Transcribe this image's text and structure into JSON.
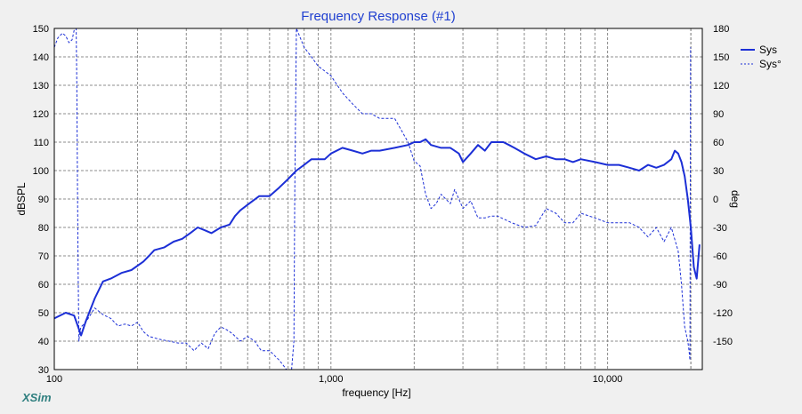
{
  "app": {
    "brand": "XSim"
  },
  "chart_data": {
    "type": "line",
    "title": "Frequency Response (#1)",
    "xlabel": "frequency [Hz]",
    "ylabel": "dBSPL",
    "y2label": "deg",
    "x_scale": "log",
    "xlim": [
      100,
      22000
    ],
    "ylim": [
      30,
      150
    ],
    "y2lim": [
      -180,
      180
    ],
    "x_ticks": [
      {
        "value": 100,
        "label": "100"
      },
      {
        "value": 1000,
        "label": "1,000"
      },
      {
        "value": 10000,
        "label": "10,000"
      }
    ],
    "y_ticks": [
      30,
      40,
      50,
      60,
      70,
      80,
      90,
      100,
      110,
      120,
      130,
      140,
      150
    ],
    "y2_ticks": [
      -150,
      -120,
      -90,
      -60,
      -30,
      0,
      30,
      60,
      90,
      120,
      150,
      180
    ],
    "grid": true,
    "legend_position": "top-right",
    "colors": {
      "series": "#1c2fd6",
      "grid": "#8c8c8c",
      "plot_bg": "#ffffff",
      "panel_bg": "#f0f0f0",
      "title": "#1f3fd0",
      "brand": "#2f7f7f"
    },
    "series": [
      {
        "name": "Sys",
        "axis": "left",
        "style": "solid",
        "x": [
          100,
          110,
          118,
          122,
          125,
          130,
          140,
          150,
          160,
          175,
          190,
          210,
          220,
          230,
          250,
          270,
          290,
          310,
          330,
          350,
          370,
          400,
          430,
          450,
          470,
          500,
          550,
          600,
          650,
          700,
          750,
          800,
          850,
          900,
          950,
          1000,
          1100,
          1200,
          1300,
          1400,
          1500,
          1700,
          1900,
          2000,
          2100,
          2200,
          2300,
          2500,
          2700,
          2900,
          3000,
          3200,
          3400,
          3600,
          3800,
          4000,
          4200,
          4400,
          4600,
          5000,
          5500,
          6000,
          6500,
          7000,
          7500,
          8000,
          9000,
          10000,
          11000,
          12000,
          13000,
          14000,
          15000,
          16000,
          17000,
          17500,
          18000,
          18500,
          19000,
          19500,
          20000,
          20500,
          21000,
          21500
        ],
        "y": [
          48,
          50,
          49,
          45,
          42,
          47,
          55,
          61,
          62,
          64,
          65,
          68,
          70,
          72,
          73,
          75,
          76,
          78,
          80,
          79,
          78,
          80,
          81,
          84,
          86,
          88,
          91,
          91,
          94,
          97,
          100,
          102,
          104,
          104,
          104,
          106,
          108,
          107,
          106,
          107,
          107,
          108,
          109,
          110,
          110,
          111,
          109,
          108,
          108,
          106,
          103,
          106,
          109,
          107,
          110,
          110,
          110,
          109,
          108,
          106,
          104,
          105,
          104,
          104,
          103,
          104,
          103,
          102,
          102,
          101,
          100,
          102,
          101,
          102,
          104,
          107,
          106,
          103,
          98,
          90,
          80,
          66,
          62,
          74
        ]
      },
      {
        "name": "Sys°",
        "axis": "right",
        "style": "dashed",
        "x": [
          100,
          103,
          107,
          110,
          113,
          116,
          118,
          120,
          120.6,
          121.2,
          122,
          122.8,
          123.5,
          125,
          130,
          140,
          150,
          160,
          170,
          180,
          190,
          200,
          210,
          220,
          240,
          260,
          280,
          300,
          320,
          340,
          360,
          380,
          400,
          420,
          440,
          470,
          500,
          530,
          560,
          600,
          650,
          700,
          720,
          735,
          740,
          750,
          800,
          850,
          900,
          950,
          1000,
          1100,
          1200,
          1300,
          1400,
          1500,
          1700,
          1900,
          2000,
          2100,
          2200,
          2300,
          2400,
          2500,
          2600,
          2700,
          2800,
          2900,
          3000,
          3200,
          3400,
          3600,
          3800,
          4000,
          4500,
          5000,
          5500,
          6000,
          6500,
          7000,
          7500,
          8000,
          9000,
          10000,
          11000,
          12000,
          13000,
          14000,
          15000,
          16000,
          17000,
          18000,
          18500,
          19000,
          19500,
          19700,
          19850,
          19950
        ],
        "y": [
          160,
          170,
          175,
          172,
          165,
          168,
          178,
          180,
          120,
          20,
          -80,
          -150,
          -140,
          -135,
          -130,
          -115,
          -122,
          -126,
          -134,
          -132,
          -134,
          -130,
          -140,
          -145,
          -148,
          -150,
          -152,
          -152,
          -160,
          -152,
          -158,
          -142,
          -135,
          -138,
          -142,
          -150,
          -145,
          -150,
          -160,
          -160,
          -170,
          -182,
          -182,
          -150,
          0,
          180,
          160,
          150,
          140,
          135,
          130,
          112,
          100,
          90,
          90,
          85,
          85,
          60,
          40,
          35,
          5,
          -10,
          -5,
          5,
          0,
          -5,
          10,
          0,
          -10,
          -2,
          -20,
          -20,
          -18,
          -18,
          -25,
          -30,
          -28,
          -10,
          -15,
          -25,
          -25,
          -15,
          -20,
          -25,
          -25,
          -25,
          -30,
          -40,
          -30,
          -45,
          -30,
          -55,
          -90,
          -135,
          -150,
          -160,
          -170,
          160
        ]
      }
    ]
  }
}
